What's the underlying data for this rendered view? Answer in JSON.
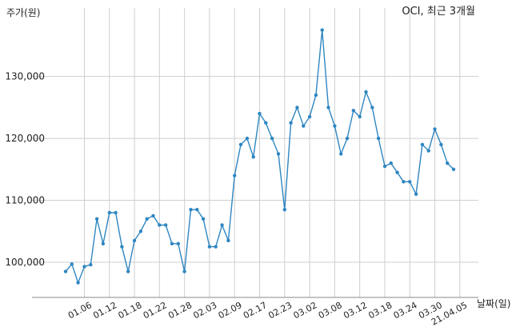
{
  "chart_data": {
    "type": "line",
    "title": "OCI, 최근 3개월",
    "ylabel": "주가(원)",
    "xlabel": "날짜(일)",
    "ylim": [
      94500,
      140000
    ],
    "grid": true,
    "y_ticks": [
      100000,
      110000,
      120000,
      130000
    ],
    "y_tick_labels": [
      "100,000",
      "110,000",
      "120,000",
      "130,000"
    ],
    "x_ticks": [
      {
        "label": "01.06",
        "index": 3
      },
      {
        "label": "01.12",
        "index": 7
      },
      {
        "label": "01.18",
        "index": 11
      },
      {
        "label": "01.22",
        "index": 15
      },
      {
        "label": "01.28",
        "index": 19
      },
      {
        "label": "02.03",
        "index": 23
      },
      {
        "label": "02.09",
        "index": 27
      },
      {
        "label": "02.17",
        "index": 31
      },
      {
        "label": "02.23",
        "index": 35
      },
      {
        "label": "03.02",
        "index": 39
      },
      {
        "label": "03.08",
        "index": 43
      },
      {
        "label": "03.12",
        "index": 47
      },
      {
        "label": "03.18",
        "index": 51
      },
      {
        "label": "03.24",
        "index": 55
      },
      {
        "label": "03.30",
        "index": 59
      },
      {
        "label": "21.04.05",
        "index": 63
      }
    ],
    "series": [
      {
        "color": "#2e86c1",
        "values": [
          98500,
          99700,
          96700,
          99300,
          99600,
          107000,
          103000,
          108000,
          108000,
          102500,
          98500,
          103500,
          105000,
          107000,
          107500,
          106000,
          106000,
          103000,
          103000,
          98500,
          108500,
          108500,
          107000,
          102500,
          102500,
          106000,
          103500,
          114000,
          119000,
          120000,
          117000,
          124000,
          122500,
          120000,
          117500,
          108500,
          122500,
          125000,
          122000,
          123500,
          127000,
          137500,
          125000,
          122000,
          117500,
          120000,
          124500,
          123500,
          127500,
          125000,
          120000,
          115500,
          116000,
          114500,
          113000,
          113000,
          111000,
          119000,
          118000,
          121500,
          119000,
          116000,
          115000
        ]
      }
    ]
  }
}
